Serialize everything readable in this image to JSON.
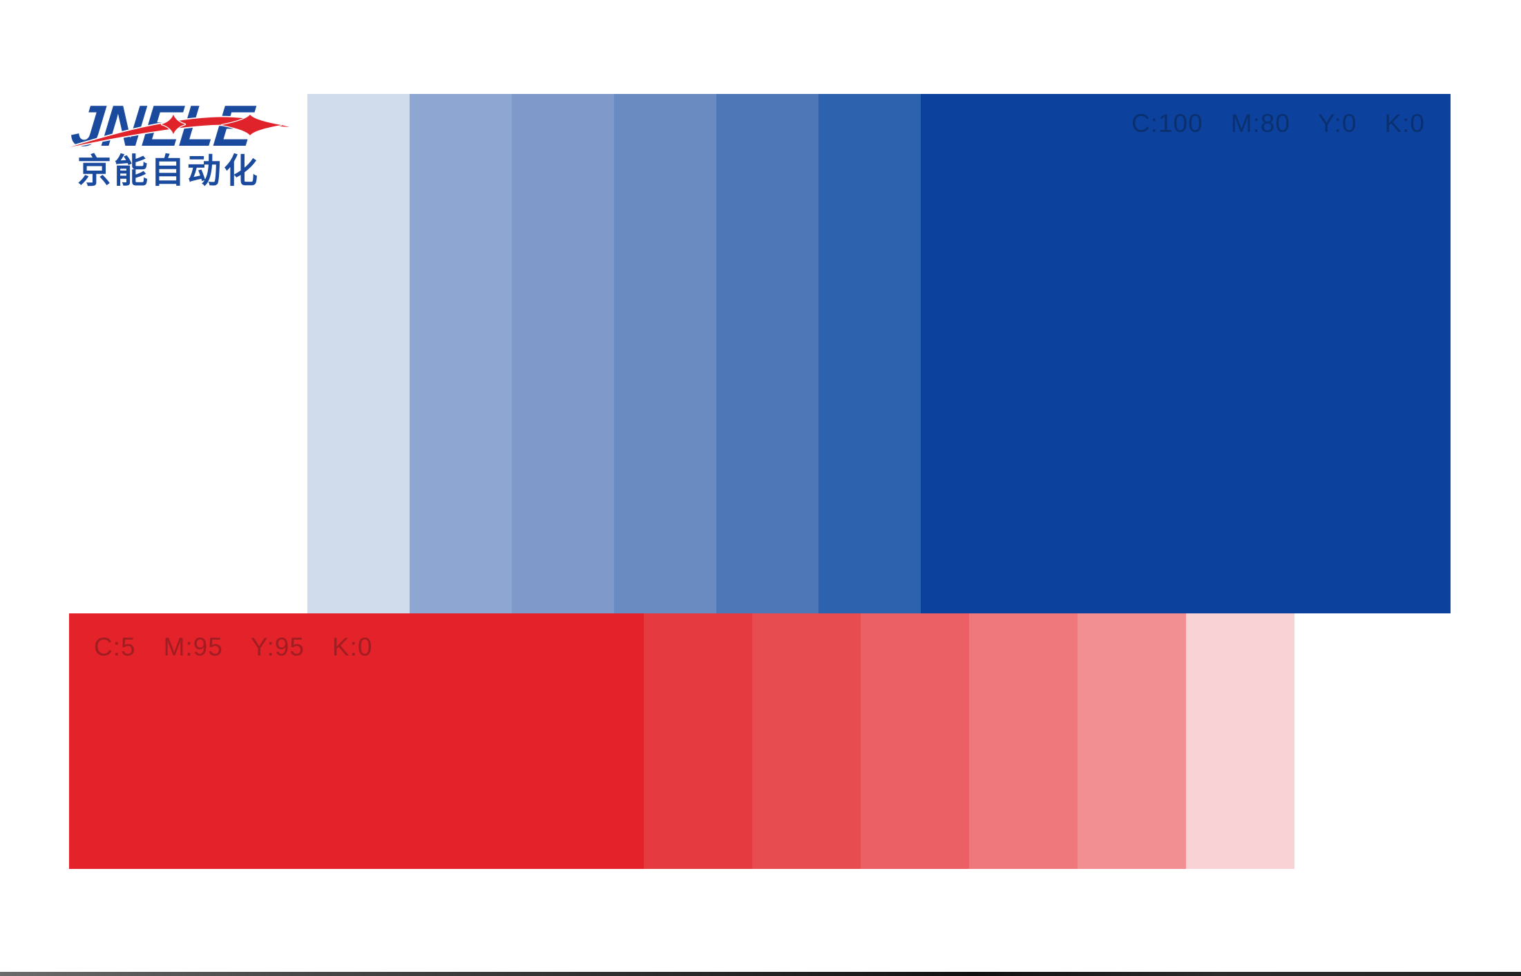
{
  "logo": {
    "brand": "JNELE",
    "subtitle": "京能自动化",
    "blue": "#1a4a9e",
    "red": "#e0222a"
  },
  "blue_palette": {
    "cmyk": {
      "c": "C:100",
      "m": "M:80",
      "y": "Y:0",
      "k": "K:0"
    },
    "label_color": "#0a306f",
    "main": "#0c429e",
    "tints": [
      "#d0dcec",
      "#8ea7d2",
      "#7f9aca",
      "#6a8bc2",
      "#4d77b6",
      "#2d63ae"
    ]
  },
  "red_palette": {
    "cmyk": {
      "c": "C:5",
      "m": "M:95",
      "y": "Y:95",
      "k": "K:0"
    },
    "label_color": "#a01d22",
    "main": "#e3222a",
    "tints": [
      "#e53a3f",
      "#e74c51",
      "#ea6065",
      "#ee787c",
      "#f28f93",
      "#f9d2d5"
    ]
  },
  "footer": {
    "bar_color": "#2a2a2a"
  }
}
